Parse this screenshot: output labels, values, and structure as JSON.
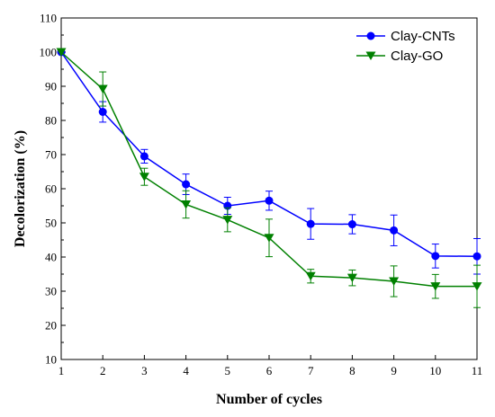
{
  "chart_data": {
    "type": "line",
    "xlabel": "Number of cycles",
    "ylabel": "Decolorization (%)",
    "xlim": [
      1,
      11
    ],
    "ylim": [
      10,
      110
    ],
    "x_ticks": [
      1,
      2,
      3,
      4,
      5,
      6,
      7,
      8,
      9,
      10,
      11
    ],
    "y_ticks": [
      10,
      20,
      30,
      40,
      50,
      60,
      70,
      80,
      90,
      100,
      110
    ],
    "grid": false,
    "legend_position": "top-right",
    "x": [
      1,
      2,
      3,
      4,
      5,
      6,
      7,
      8,
      9,
      10,
      11
    ],
    "series": [
      {
        "name": "Clay-CNTs",
        "color": "#0000ff",
        "marker": "circle",
        "values": [
          100,
          82.5,
          69.5,
          61.3,
          55.0,
          56.5,
          49.7,
          49.6,
          47.8,
          40.3,
          40.2
        ],
        "errors": [
          0,
          3.0,
          2.0,
          3.0,
          2.5,
          2.8,
          4.5,
          2.8,
          4.5,
          3.5,
          5.2
        ]
      },
      {
        "name": "Clay-GO",
        "color": "#008000",
        "marker": "triangle-down",
        "values": [
          100,
          89.2,
          63.5,
          55.4,
          50.9,
          45.6,
          34.4,
          33.9,
          32.9,
          31.4,
          31.4
        ],
        "errors": [
          0,
          5.0,
          2.5,
          4.0,
          3.5,
          5.5,
          2.0,
          2.3,
          4.5,
          3.5,
          6.2
        ]
      }
    ]
  }
}
